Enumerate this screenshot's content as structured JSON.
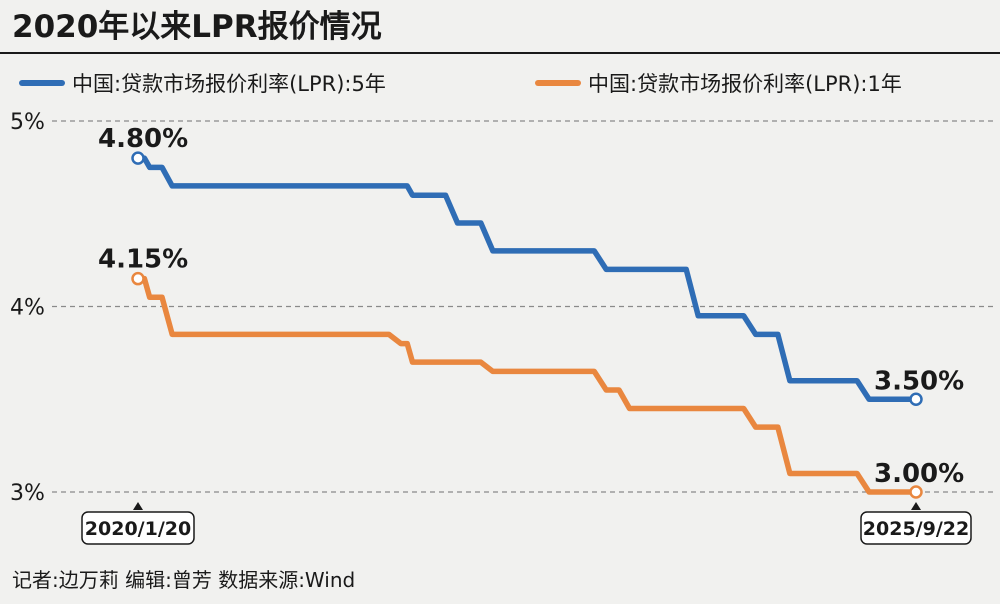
{
  "chart_data": {
    "type": "line",
    "title": "2020年以来LPR报价情况",
    "series": [
      {
        "name": "中国:贷款市场报价利率(LPR):5年",
        "color": "#2f6db5",
        "start_label": "4.80%",
        "end_label": "3.50%",
        "points": [
          [
            "2020-01-20",
            4.8
          ],
          [
            "2020-02-20",
            4.75
          ],
          [
            "2020-04-20",
            4.65
          ],
          [
            "2021-12-20",
            4.65
          ],
          [
            "2022-01-20",
            4.6
          ],
          [
            "2022-05-20",
            4.45
          ],
          [
            "2022-08-22",
            4.3
          ],
          [
            "2023-06-20",
            4.2
          ],
          [
            "2024-02-20",
            3.95
          ],
          [
            "2024-07-22",
            3.85
          ],
          [
            "2024-10-21",
            3.6
          ],
          [
            "2025-05-20",
            3.5
          ],
          [
            "2025-09-22",
            3.5
          ]
        ]
      },
      {
        "name": "中国:贷款市场报价利率(LPR):1年",
        "color": "#e9873f",
        "start_label": "4.15%",
        "end_label": "3.00%",
        "points": [
          [
            "2020-01-20",
            4.15
          ],
          [
            "2020-02-20",
            4.05
          ],
          [
            "2020-04-20",
            3.85
          ],
          [
            "2021-12-20",
            3.8
          ],
          [
            "2022-01-20",
            3.7
          ],
          [
            "2022-08-22",
            3.65
          ],
          [
            "2023-06-20",
            3.55
          ],
          [
            "2023-08-21",
            3.45
          ],
          [
            "2024-07-22",
            3.35
          ],
          [
            "2024-10-21",
            3.1
          ],
          [
            "2025-05-20",
            3.0
          ],
          [
            "2025-09-22",
            3.0
          ]
        ]
      }
    ],
    "y_ticks": [
      "5%",
      "4%",
      "3%"
    ],
    "y_tick_values": [
      5,
      4,
      3
    ],
    "ylim": [
      3,
      5
    ],
    "xlim": [
      "2020-01-20",
      "2025-09-22"
    ],
    "x_labels": [
      "2020/1/20",
      "2025/9/22"
    ],
    "grid": "dashed horizontal",
    "legend_position": "top"
  },
  "footer": {
    "credits": "记者:边万莉  编辑:曾芳  数据来源:Wind"
  }
}
